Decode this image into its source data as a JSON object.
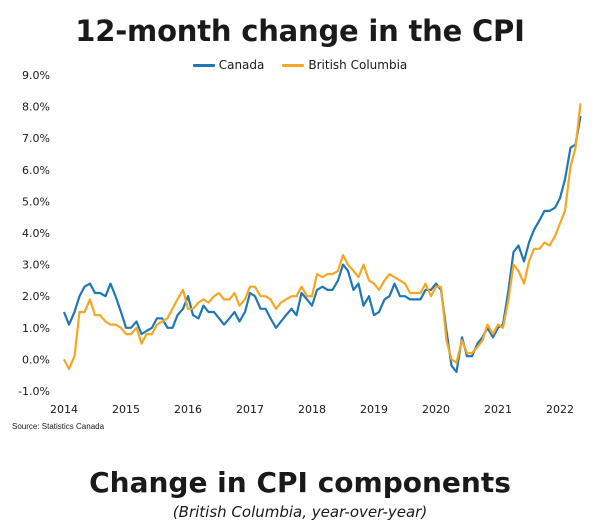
{
  "title": "12-month change in the CPI",
  "source": "Source: Statistics Canada",
  "lower_title": "Change in CPI components",
  "lower_subtitle": "(British Columbia, year-over-year)",
  "colors": {
    "Canada": "#1f77b4",
    "British Columbia": "#f5a623"
  },
  "chart_data": {
    "type": "line",
    "title": "12-month change in the CPI",
    "xlabel": "",
    "ylabel": "",
    "ylim": [
      -1.0,
      9.0
    ],
    "xlim": [
      2014,
      2022.4
    ],
    "y_ticks": [
      "-1.0%",
      "0.0%",
      "1.0%",
      "2.0%",
      "3.0%",
      "4.0%",
      "5.0%",
      "6.0%",
      "7.0%",
      "8.0%",
      "9.0%"
    ],
    "x_ticks": [
      "2014",
      "2015",
      "2016",
      "2017",
      "2018",
      "2019",
      "2020",
      "2021",
      "2022"
    ],
    "legend_position": "top-center",
    "grid": false,
    "series": [
      {
        "name": "Canada",
        "color": "#1f77b4",
        "points": [
          [
            2014.0,
            1.5
          ],
          [
            2014.08,
            1.1
          ],
          [
            2014.17,
            1.5
          ],
          [
            2014.25,
            2.0
          ],
          [
            2014.33,
            2.3
          ],
          [
            2014.42,
            2.4
          ],
          [
            2014.5,
            2.1
          ],
          [
            2014.58,
            2.1
          ],
          [
            2014.67,
            2.0
          ],
          [
            2014.75,
            2.4
          ],
          [
            2014.83,
            2.0
          ],
          [
            2014.92,
            1.5
          ],
          [
            2015.0,
            1.0
          ],
          [
            2015.08,
            1.0
          ],
          [
            2015.17,
            1.2
          ],
          [
            2015.25,
            0.8
          ],
          [
            2015.33,
            0.9
          ],
          [
            2015.42,
            1.0
          ],
          [
            2015.5,
            1.3
          ],
          [
            2015.58,
            1.3
          ],
          [
            2015.67,
            1.0
          ],
          [
            2015.75,
            1.0
          ],
          [
            2015.83,
            1.4
          ],
          [
            2015.92,
            1.6
          ],
          [
            2016.0,
            2.0
          ],
          [
            2016.08,
            1.4
          ],
          [
            2016.17,
            1.3
          ],
          [
            2016.25,
            1.7
          ],
          [
            2016.33,
            1.5
          ],
          [
            2016.42,
            1.5
          ],
          [
            2016.5,
            1.3
          ],
          [
            2016.58,
            1.1
          ],
          [
            2016.67,
            1.3
          ],
          [
            2016.75,
            1.5
          ],
          [
            2016.83,
            1.2
          ],
          [
            2016.92,
            1.5
          ],
          [
            2017.0,
            2.1
          ],
          [
            2017.08,
            2.0
          ],
          [
            2017.17,
            1.6
          ],
          [
            2017.25,
            1.6
          ],
          [
            2017.33,
            1.3
          ],
          [
            2017.42,
            1.0
          ],
          [
            2017.5,
            1.2
          ],
          [
            2017.58,
            1.4
          ],
          [
            2017.67,
            1.6
          ],
          [
            2017.75,
            1.4
          ],
          [
            2017.83,
            2.1
          ],
          [
            2017.92,
            1.9
          ],
          [
            2018.0,
            1.7
          ],
          [
            2018.08,
            2.2
          ],
          [
            2018.17,
            2.3
          ],
          [
            2018.25,
            2.2
          ],
          [
            2018.33,
            2.2
          ],
          [
            2018.42,
            2.5
          ],
          [
            2018.5,
            3.0
          ],
          [
            2018.58,
            2.8
          ],
          [
            2018.67,
            2.2
          ],
          [
            2018.75,
            2.4
          ],
          [
            2018.83,
            1.7
          ],
          [
            2018.92,
            2.0
          ],
          [
            2019.0,
            1.4
          ],
          [
            2019.08,
            1.5
          ],
          [
            2019.17,
            1.9
          ],
          [
            2019.25,
            2.0
          ],
          [
            2019.33,
            2.4
          ],
          [
            2019.42,
            2.0
          ],
          [
            2019.5,
            2.0
          ],
          [
            2019.58,
            1.9
          ],
          [
            2019.67,
            1.9
          ],
          [
            2019.75,
            1.9
          ],
          [
            2019.83,
            2.2
          ],
          [
            2019.92,
            2.2
          ],
          [
            2020.0,
            2.4
          ],
          [
            2020.08,
            2.2
          ],
          [
            2020.17,
            0.9
          ],
          [
            2020.25,
            -0.2
          ],
          [
            2020.33,
            -0.4
          ],
          [
            2020.42,
            0.7
          ],
          [
            2020.5,
            0.1
          ],
          [
            2020.58,
            0.1
          ],
          [
            2020.67,
            0.5
          ],
          [
            2020.75,
            0.7
          ],
          [
            2020.83,
            1.0
          ],
          [
            2020.92,
            0.7
          ],
          [
            2021.0,
            1.0
          ],
          [
            2021.08,
            1.1
          ],
          [
            2021.17,
            2.2
          ],
          [
            2021.25,
            3.4
          ],
          [
            2021.33,
            3.6
          ],
          [
            2021.42,
            3.1
          ],
          [
            2021.5,
            3.7
          ],
          [
            2021.58,
            4.1
          ],
          [
            2021.67,
            4.4
          ],
          [
            2021.75,
            4.7
          ],
          [
            2021.83,
            4.7
          ],
          [
            2021.92,
            4.8
          ],
          [
            2022.0,
            5.1
          ],
          [
            2022.08,
            5.7
          ],
          [
            2022.17,
            6.7
          ],
          [
            2022.25,
            6.8
          ],
          [
            2022.33,
            7.7
          ]
        ]
      },
      {
        "name": "British Columbia",
        "color": "#f5a623",
        "points": [
          [
            2014.0,
            0.0
          ],
          [
            2014.08,
            -0.3
          ],
          [
            2014.17,
            0.1
          ],
          [
            2014.25,
            1.5
          ],
          [
            2014.33,
            1.5
          ],
          [
            2014.42,
            1.9
          ],
          [
            2014.5,
            1.4
          ],
          [
            2014.58,
            1.4
          ],
          [
            2014.67,
            1.2
          ],
          [
            2014.75,
            1.1
          ],
          [
            2014.83,
            1.1
          ],
          [
            2014.92,
            1.0
          ],
          [
            2015.0,
            0.8
          ],
          [
            2015.08,
            0.8
          ],
          [
            2015.17,
            1.0
          ],
          [
            2015.25,
            0.5
          ],
          [
            2015.33,
            0.8
          ],
          [
            2015.42,
            0.8
          ],
          [
            2015.5,
            1.1
          ],
          [
            2015.58,
            1.2
          ],
          [
            2015.67,
            1.3
          ],
          [
            2015.75,
            1.6
          ],
          [
            2015.83,
            1.9
          ],
          [
            2015.92,
            2.2
          ],
          [
            2016.0,
            1.6
          ],
          [
            2016.08,
            1.6
          ],
          [
            2016.17,
            1.8
          ],
          [
            2016.25,
            1.9
          ],
          [
            2016.33,
            1.8
          ],
          [
            2016.42,
            2.0
          ],
          [
            2016.5,
            2.1
          ],
          [
            2016.58,
            1.9
          ],
          [
            2016.67,
            1.9
          ],
          [
            2016.75,
            2.1
          ],
          [
            2016.83,
            1.7
          ],
          [
            2016.92,
            1.9
          ],
          [
            2017.0,
            2.3
          ],
          [
            2017.08,
            2.3
          ],
          [
            2017.17,
            2.0
          ],
          [
            2017.25,
            2.0
          ],
          [
            2017.33,
            1.9
          ],
          [
            2017.42,
            1.6
          ],
          [
            2017.5,
            1.8
          ],
          [
            2017.58,
            1.9
          ],
          [
            2017.67,
            2.0
          ],
          [
            2017.75,
            2.0
          ],
          [
            2017.83,
            2.3
          ],
          [
            2017.92,
            2.0
          ],
          [
            2018.0,
            2.0
          ],
          [
            2018.08,
            2.7
          ],
          [
            2018.17,
            2.6
          ],
          [
            2018.25,
            2.7
          ],
          [
            2018.33,
            2.7
          ],
          [
            2018.42,
            2.8
          ],
          [
            2018.5,
            3.3
          ],
          [
            2018.58,
            3.0
          ],
          [
            2018.67,
            2.8
          ],
          [
            2018.75,
            2.6
          ],
          [
            2018.83,
            3.0
          ],
          [
            2018.92,
            2.5
          ],
          [
            2019.0,
            2.4
          ],
          [
            2019.08,
            2.2
          ],
          [
            2019.17,
            2.5
          ],
          [
            2019.25,
            2.7
          ],
          [
            2019.33,
            2.6
          ],
          [
            2019.42,
            2.5
          ],
          [
            2019.5,
            2.4
          ],
          [
            2019.58,
            2.1
          ],
          [
            2019.67,
            2.1
          ],
          [
            2019.75,
            2.1
          ],
          [
            2019.83,
            2.4
          ],
          [
            2019.92,
            2.0
          ],
          [
            2020.0,
            2.3
          ],
          [
            2020.08,
            2.3
          ],
          [
            2020.17,
            0.6
          ],
          [
            2020.25,
            0.0
          ],
          [
            2020.33,
            -0.1
          ],
          [
            2020.42,
            0.6
          ],
          [
            2020.5,
            0.2
          ],
          [
            2020.58,
            0.2
          ],
          [
            2020.67,
            0.4
          ],
          [
            2020.75,
            0.6
          ],
          [
            2020.83,
            1.1
          ],
          [
            2020.92,
            0.8
          ],
          [
            2021.0,
            1.1
          ],
          [
            2021.08,
            1.0
          ],
          [
            2021.17,
            1.9
          ],
          [
            2021.25,
            3.0
          ],
          [
            2021.33,
            2.8
          ],
          [
            2021.42,
            2.4
          ],
          [
            2021.5,
            3.1
          ],
          [
            2021.58,
            3.5
          ],
          [
            2021.67,
            3.5
          ],
          [
            2021.75,
            3.7
          ],
          [
            2021.83,
            3.6
          ],
          [
            2021.92,
            3.9
          ],
          [
            2022.0,
            4.3
          ],
          [
            2022.08,
            4.7
          ],
          [
            2022.17,
            6.1
          ],
          [
            2022.25,
            6.7
          ],
          [
            2022.33,
            8.1
          ]
        ]
      }
    ]
  }
}
